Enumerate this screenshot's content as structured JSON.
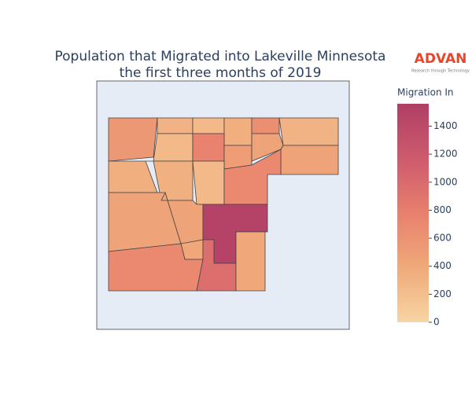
{
  "chart_data": {
    "type": "choropleth",
    "title": "Population that Migrated into Lakeville Minnesota",
    "subtitle": "the first three months of 2019",
    "logo": {
      "name": "ADVAN",
      "tagline": "Research through Technology"
    },
    "values": [
      550,
      300,
      250,
      350,
      650,
      300,
      250,
      750,
      500,
      450,
      450,
      350,
      330,
      250,
      700,
      450,
      450,
      1500,
      400,
      700,
      950,
      400
    ],
    "colorscale": [
      "#f7d5a4",
      "#f0a97a",
      "#e8806e",
      "#cd5a6d",
      "#b03f66"
    ],
    "colorbar": {
      "title": "Migration In",
      "lim": [
        0,
        1560
      ],
      "ticks": [
        0,
        200,
        400,
        600,
        800,
        1000,
        1200,
        1400
      ]
    }
  }
}
